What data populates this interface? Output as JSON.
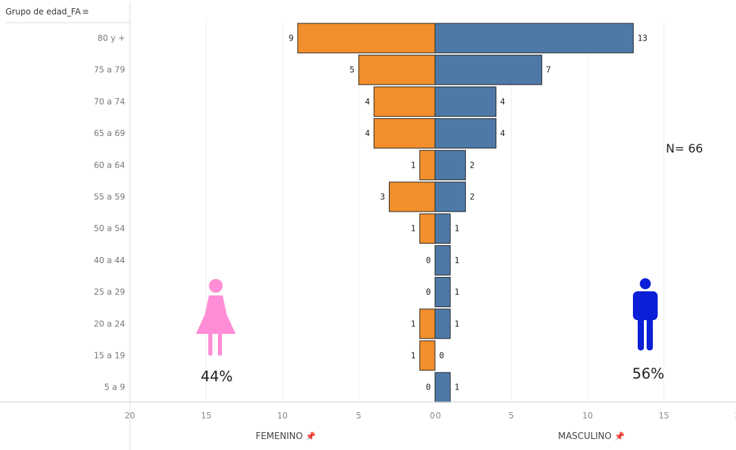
{
  "header": {
    "field_label": "Grupo de edad_FA",
    "sort_icon": "sort-descending-icon"
  },
  "annotations": {
    "n_label": "N= 66",
    "female_pct": "44%",
    "male_pct": "56%"
  },
  "icons": {
    "female": "female-person-icon",
    "male": "male-person-icon",
    "pin": "pin-icon"
  },
  "colors": {
    "female": "#f28e2b",
    "male": "#4e79a7",
    "female_icon": "#ff8ed6",
    "male_icon": "#0a1fd6"
  },
  "chart_data": {
    "type": "bar",
    "orientation": "horizontal",
    "categories": [
      "80 y +",
      "75 a 79",
      "70 a 74",
      "65 a 69",
      "60 a 64",
      "55 a 59",
      "50 a 54",
      "40 a 44",
      "25 a 29",
      "20 a 24",
      "15 a 19",
      "5 a 9"
    ],
    "series": [
      {
        "name": "FEMENINO",
        "values": [
          9,
          5,
          4,
          4,
          1,
          3,
          1,
          0,
          0,
          1,
          1,
          0
        ]
      },
      {
        "name": "MASCULINO",
        "values": [
          13,
          7,
          4,
          4,
          2,
          2,
          1,
          1,
          1,
          1,
          0,
          1
        ]
      }
    ],
    "xlim": [
      0,
      20
    ],
    "xticks": [
      20,
      15,
      10,
      5,
      0
    ],
    "xlabel_left": "FEMENINO",
    "xlabel_right": "MASCULINO",
    "grid": true
  }
}
